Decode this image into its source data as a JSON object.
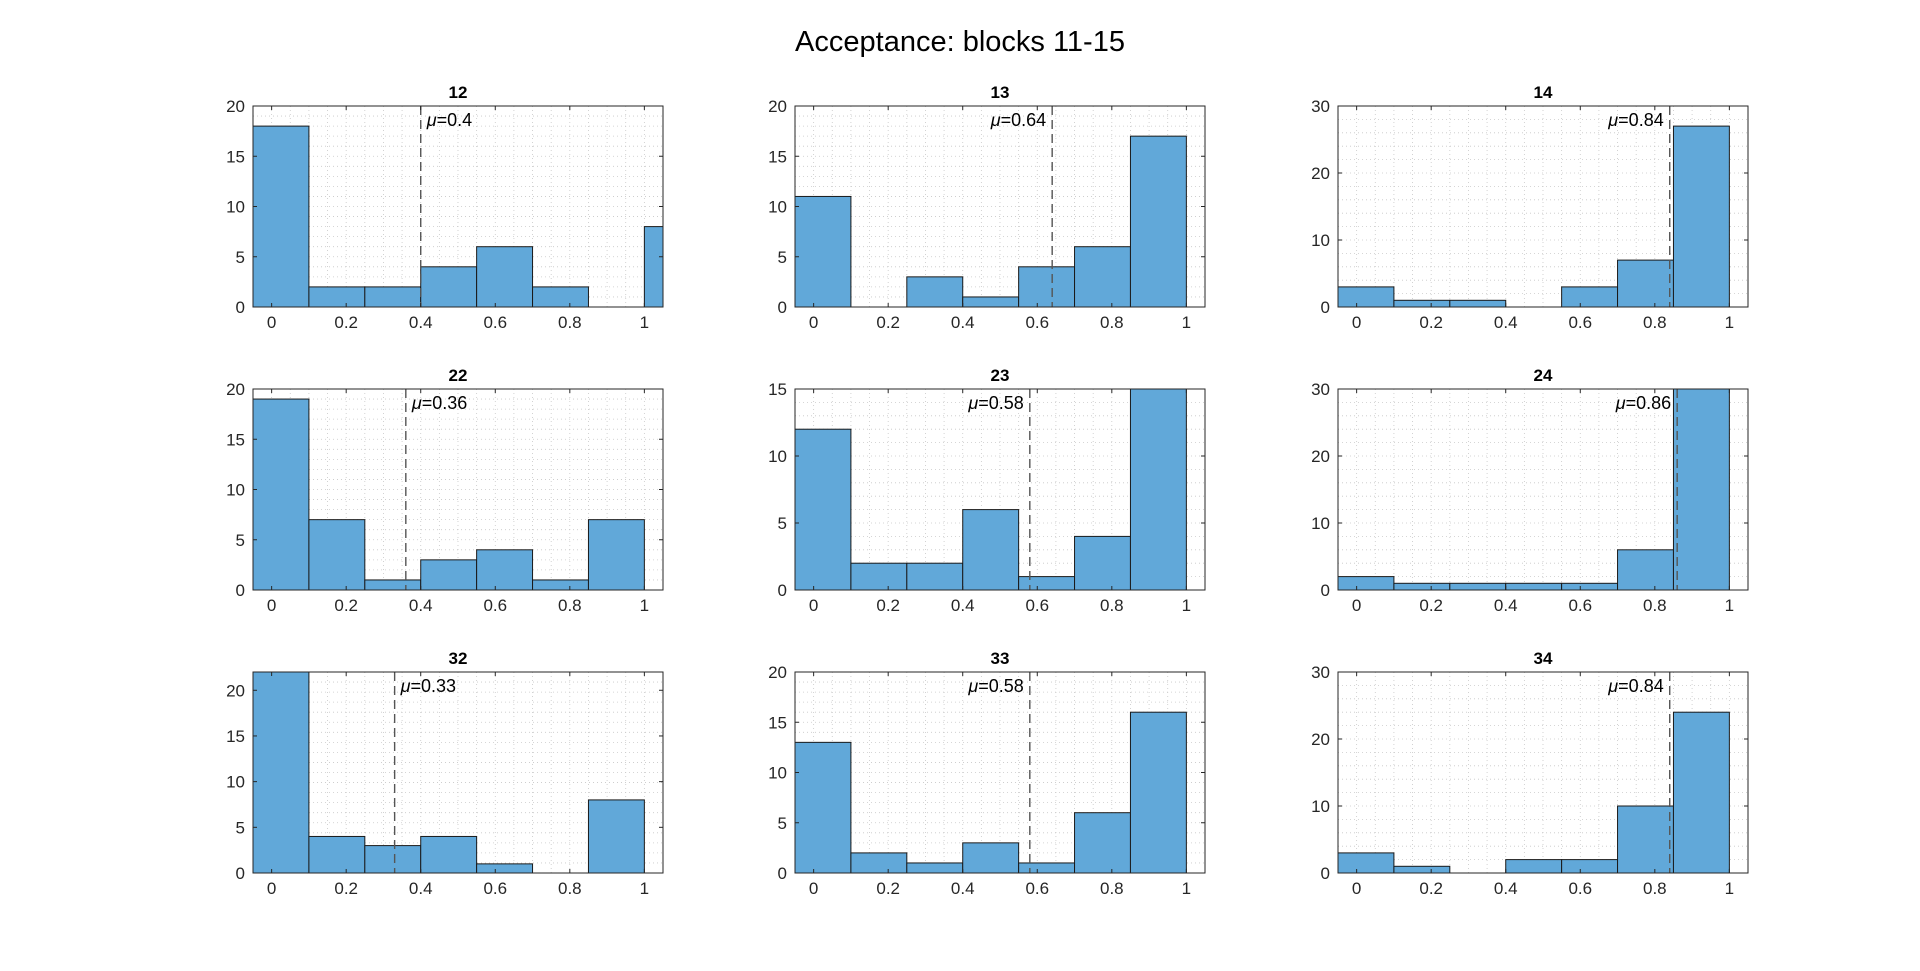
{
  "figure": {
    "title": "Acceptance: blocks 11-15"
  },
  "style": {
    "bar_fill": "#61a8d9",
    "bar_edge": "#1a1a1a",
    "grid_color": "#c8c8c8",
    "axis_color": "#262626",
    "mean_line_color": "#555555"
  },
  "chart_data": [
    {
      "type": "bar",
      "title": "12",
      "mean_label": "=0.4",
      "mean": 0.4,
      "bin_edges": [
        -0.05,
        0.1,
        0.25,
        0.4,
        0.55,
        0.7,
        0.85,
        1.0,
        1.15
      ],
      "bin_edges_display": [
        -0.05,
        0.1,
        0.25,
        0.4,
        0.55,
        0.7,
        0.85,
        1.0,
        1.05
      ],
      "values": [
        18,
        2,
        2,
        4,
        6,
        2,
        0,
        8
      ],
      "xlim": [
        -0.05,
        1.05
      ],
      "ylim": [
        0,
        20
      ],
      "xticks": [
        0,
        0.2,
        0.4,
        0.6,
        0.8,
        1
      ],
      "xtick_labels": [
        "0",
        "0.2",
        "0.4",
        "0.6",
        "0.8",
        "1"
      ],
      "yticks": [
        0,
        5,
        10,
        15,
        20
      ],
      "ytick_labels": [
        "0",
        "5",
        "10",
        "15",
        "20"
      ],
      "grid": "on"
    },
    {
      "type": "bar",
      "title": "13",
      "mean_label": "=0.64",
      "mean": 0.64,
      "bin_edges_display": [
        -0.05,
        0.1,
        0.25,
        0.4,
        0.55,
        0.7,
        0.85,
        1.0,
        1.05
      ],
      "values": [
        11,
        0,
        3,
        1,
        4,
        6,
        17,
        0
      ],
      "xlim": [
        -0.05,
        1.05
      ],
      "ylim": [
        0,
        20
      ],
      "xticks": [
        0,
        0.2,
        0.4,
        0.6,
        0.8,
        1
      ],
      "xtick_labels": [
        "0",
        "0.2",
        "0.4",
        "0.6",
        "0.8",
        "1"
      ],
      "yticks": [
        0,
        5,
        10,
        15,
        20
      ],
      "ytick_labels": [
        "0",
        "5",
        "10",
        "15",
        "20"
      ],
      "grid": "on"
    },
    {
      "type": "bar",
      "title": "14",
      "mean_label": "=0.84",
      "mean": 0.84,
      "bin_edges_display": [
        -0.05,
        0.1,
        0.25,
        0.4,
        0.55,
        0.7,
        0.85,
        1.0,
        1.05
      ],
      "values": [
        3,
        1,
        1,
        0,
        3,
        7,
        27,
        0
      ],
      "xlim": [
        -0.05,
        1.05
      ],
      "ylim": [
        0,
        30
      ],
      "xticks": [
        0,
        0.2,
        0.4,
        0.6,
        0.8,
        1
      ],
      "xtick_labels": [
        "0",
        "0.2",
        "0.4",
        "0.6",
        "0.8",
        "1"
      ],
      "yticks": [
        0,
        10,
        20,
        30
      ],
      "ytick_labels": [
        "0",
        "10",
        "20",
        "30"
      ],
      "grid": "on"
    },
    {
      "type": "bar",
      "title": "22",
      "mean_label": "=0.36",
      "mean": 0.36,
      "bin_edges_display": [
        -0.05,
        0.1,
        0.25,
        0.4,
        0.55,
        0.7,
        0.85,
        1.0,
        1.05
      ],
      "values": [
        19,
        7,
        1,
        3,
        4,
        1,
        7,
        0
      ],
      "xlim": [
        -0.05,
        1.05
      ],
      "ylim": [
        0,
        20
      ],
      "xticks": [
        0,
        0.2,
        0.4,
        0.6,
        0.8,
        1
      ],
      "xtick_labels": [
        "0",
        "0.2",
        "0.4",
        "0.6",
        "0.8",
        "1"
      ],
      "yticks": [
        0,
        5,
        10,
        15,
        20
      ],
      "ytick_labels": [
        "0",
        "5",
        "10",
        "15",
        "20"
      ],
      "grid": "on"
    },
    {
      "type": "bar",
      "title": "23",
      "mean_label": "=0.58",
      "mean": 0.58,
      "bin_edges_display": [
        -0.05,
        0.1,
        0.25,
        0.4,
        0.55,
        0.7,
        0.85,
        1.0,
        1.05
      ],
      "values": [
        12,
        2,
        2,
        6,
        1,
        4,
        15,
        0
      ],
      "xlim": [
        -0.05,
        1.05
      ],
      "ylim": [
        0,
        15
      ],
      "xticks": [
        0,
        0.2,
        0.4,
        0.6,
        0.8,
        1
      ],
      "xtick_labels": [
        "0",
        "0.2",
        "0.4",
        "0.6",
        "0.8",
        "1"
      ],
      "yticks": [
        0,
        5,
        10,
        15
      ],
      "ytick_labels": [
        "0",
        "5",
        "10",
        "15"
      ],
      "grid": "on"
    },
    {
      "type": "bar",
      "title": "24",
      "mean_label": "=0.86",
      "mean": 0.86,
      "bin_edges_display": [
        -0.05,
        0.1,
        0.25,
        0.4,
        0.55,
        0.7,
        0.85,
        1.0,
        1.05
      ],
      "values": [
        2,
        1,
        1,
        1,
        1,
        6,
        30,
        0
      ],
      "xlim": [
        -0.05,
        1.05
      ],
      "ylim": [
        0,
        30
      ],
      "xticks": [
        0,
        0.2,
        0.4,
        0.6,
        0.8,
        1
      ],
      "xtick_labels": [
        "0",
        "0.2",
        "0.4",
        "0.6",
        "0.8",
        "1"
      ],
      "yticks": [
        0,
        10,
        20,
        30
      ],
      "ytick_labels": [
        "0",
        "10",
        "20",
        "30"
      ],
      "grid": "on"
    },
    {
      "type": "bar",
      "title": "32",
      "mean_label": "=0.33",
      "mean": 0.33,
      "bin_edges_display": [
        -0.05,
        0.1,
        0.25,
        0.4,
        0.55,
        0.7,
        0.85,
        1.0,
        1.05
      ],
      "values": [
        22,
        4,
        3,
        4,
        1,
        0,
        8,
        0
      ],
      "xlim": [
        -0.05,
        1.05
      ],
      "ylim": [
        0,
        22
      ],
      "xticks": [
        0,
        0.2,
        0.4,
        0.6,
        0.8,
        1
      ],
      "xtick_labels": [
        "0",
        "0.2",
        "0.4",
        "0.6",
        "0.8",
        "1"
      ],
      "yticks": [
        0,
        5,
        10,
        15,
        20
      ],
      "ytick_labels": [
        "0",
        "5",
        "10",
        "15",
        "20"
      ],
      "grid": "on"
    },
    {
      "type": "bar",
      "title": "33",
      "mean_label": "=0.58",
      "mean": 0.58,
      "bin_edges_display": [
        -0.05,
        0.1,
        0.25,
        0.4,
        0.55,
        0.7,
        0.85,
        1.0,
        1.05
      ],
      "values": [
        13,
        2,
        1,
        3,
        1,
        6,
        16,
        0
      ],
      "xlim": [
        -0.05,
        1.05
      ],
      "ylim": [
        0,
        20
      ],
      "xticks": [
        0,
        0.2,
        0.4,
        0.6,
        0.8,
        1
      ],
      "xtick_labels": [
        "0",
        "0.2",
        "0.4",
        "0.6",
        "0.8",
        "1"
      ],
      "yticks": [
        0,
        5,
        10,
        15,
        20
      ],
      "ytick_labels": [
        "0",
        "5",
        "10",
        "15",
        "20"
      ],
      "grid": "on"
    },
    {
      "type": "bar",
      "title": "34",
      "mean_label": "=0.84",
      "mean": 0.84,
      "bin_edges_display": [
        -0.05,
        0.1,
        0.25,
        0.4,
        0.55,
        0.7,
        0.85,
        1.0,
        1.05
      ],
      "values": [
        3,
        1,
        0,
        2,
        2,
        10,
        24,
        0
      ],
      "xlim": [
        -0.05,
        1.05
      ],
      "ylim": [
        0,
        30
      ],
      "xticks": [
        0,
        0.2,
        0.4,
        0.6,
        0.8,
        1
      ],
      "xtick_labels": [
        "0",
        "0.2",
        "0.4",
        "0.6",
        "0.8",
        "1"
      ],
      "yticks": [
        0,
        10,
        20,
        30
      ],
      "ytick_labels": [
        "0",
        "10",
        "20",
        "30"
      ],
      "grid": "on"
    }
  ]
}
